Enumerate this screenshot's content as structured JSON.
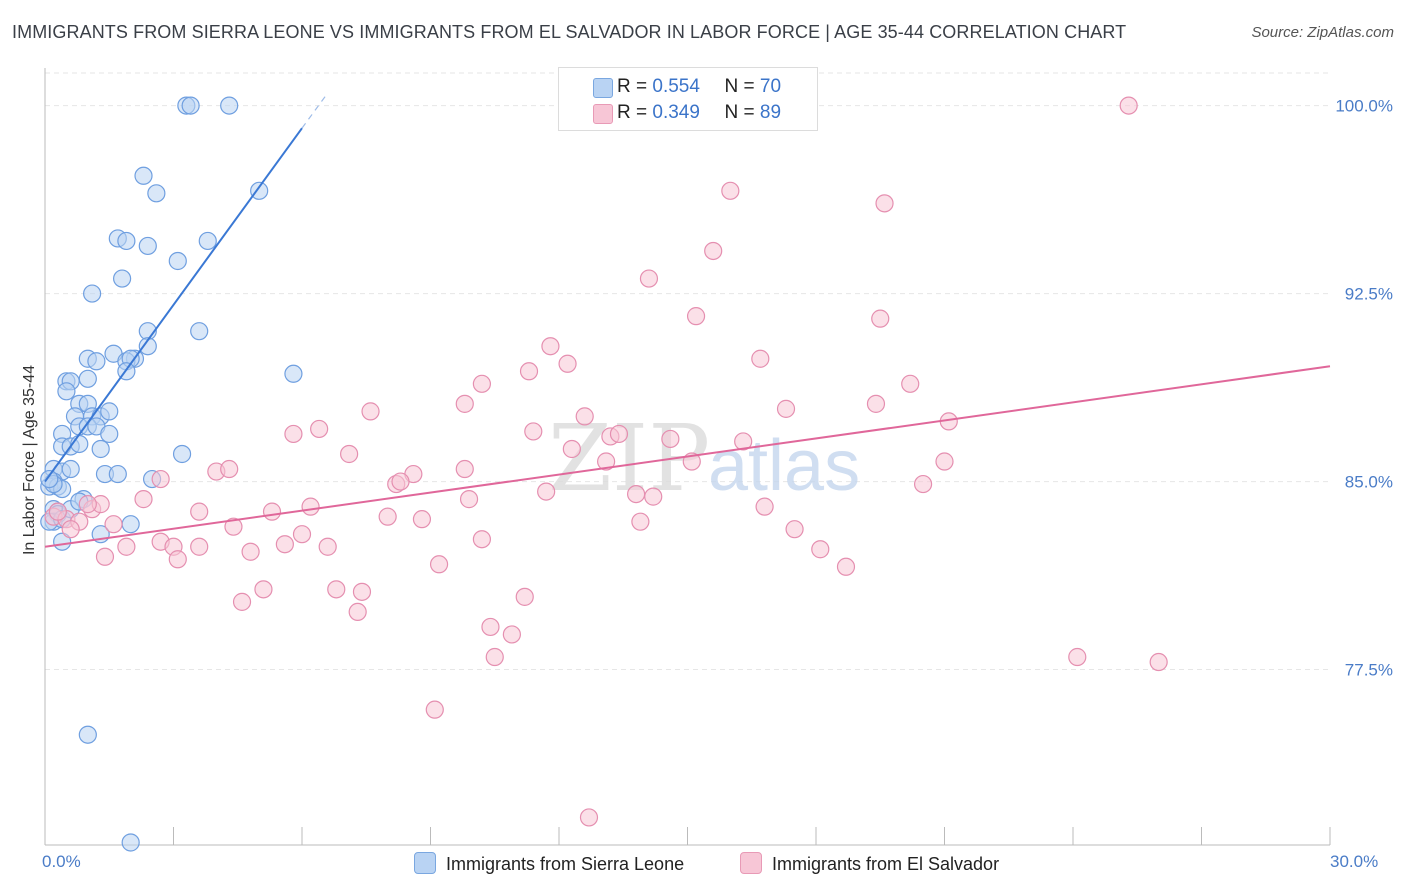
{
  "title": "IMMIGRANTS FROM SIERRA LEONE VS IMMIGRANTS FROM EL SALVADOR IN LABOR FORCE | AGE 35-44 CORRELATION CHART",
  "source": "Source: ZipAtlas.com",
  "watermark": "ZIPatlas",
  "colors": {
    "blue": "#3a78d4",
    "blue_fill": "#b9d3f3",
    "pink": "#e0679a",
    "pink_fill": "#f7c6d6",
    "tick": "#4a7cc7"
  },
  "legend": {
    "r_label": "R =",
    "n_label": "N =",
    "series1": {
      "r": "0.554",
      "n": "70"
    },
    "series2": {
      "r": "0.349",
      "n": "89"
    }
  },
  "chart_data": {
    "type": "scatter",
    "title": "IMMIGRANTS FROM SIERRA LEONE VS IMMIGRANTS FROM EL SALVADOR IN LABOR FORCE | AGE 35-44 CORRELATION CHART",
    "xlabel": "",
    "ylabel": "In Labor Force | Age 35-44",
    "xlim": [
      0,
      30
    ],
    "ylim": [
      70.5,
      101.5
    ],
    "x_tick_labels": [
      "0.0%",
      "30.0%"
    ],
    "y_ticks": [
      77.5,
      85.0,
      92.5,
      100.0
    ],
    "y_tick_labels": [
      "77.5%",
      "85.0%",
      "92.5%",
      "100.0%"
    ],
    "grid": true,
    "legend_position": "top-center",
    "series": [
      {
        "name": "Immigrants from Sierra Leone",
        "color": "#3a78d4",
        "trend": {
          "x": [
            0.0,
            6.0
          ],
          "y": [
            85.0,
            99.1
          ]
        },
        "points": [
          [
            3.3,
            100.0
          ],
          [
            3.4,
            100.0
          ],
          [
            4.3,
            100.0
          ],
          [
            2.3,
            97.2
          ],
          [
            2.6,
            96.5
          ],
          [
            5.0,
            96.6
          ],
          [
            1.7,
            94.7
          ],
          [
            1.9,
            94.6
          ],
          [
            2.4,
            94.4
          ],
          [
            3.8,
            94.6
          ],
          [
            3.1,
            93.8
          ],
          [
            1.8,
            93.1
          ],
          [
            1.1,
            92.5
          ],
          [
            2.4,
            91.0
          ],
          [
            3.6,
            91.0
          ],
          [
            2.4,
            90.4
          ],
          [
            1.6,
            90.1
          ],
          [
            1.0,
            89.9
          ],
          [
            1.2,
            89.8
          ],
          [
            2.1,
            89.9
          ],
          [
            1.9,
            89.8
          ],
          [
            2.0,
            89.9
          ],
          [
            0.5,
            89.0
          ],
          [
            0.6,
            89.0
          ],
          [
            1.0,
            89.1
          ],
          [
            1.9,
            89.4
          ],
          [
            5.8,
            89.3
          ],
          [
            0.5,
            88.6
          ],
          [
            0.8,
            88.1
          ],
          [
            1.0,
            88.1
          ],
          [
            0.7,
            87.6
          ],
          [
            1.1,
            87.6
          ],
          [
            1.3,
            87.6
          ],
          [
            1.5,
            87.8
          ],
          [
            0.8,
            87.2
          ],
          [
            1.0,
            87.2
          ],
          [
            1.2,
            87.2
          ],
          [
            0.4,
            86.9
          ],
          [
            1.5,
            86.9
          ],
          [
            0.4,
            86.4
          ],
          [
            0.6,
            86.4
          ],
          [
            0.8,
            86.5
          ],
          [
            1.3,
            86.3
          ],
          [
            3.2,
            86.1
          ],
          [
            0.2,
            85.5
          ],
          [
            0.4,
            85.4
          ],
          [
            0.6,
            85.5
          ],
          [
            1.4,
            85.3
          ],
          [
            1.7,
            85.3
          ],
          [
            2.5,
            85.1
          ],
          [
            0.2,
            85.0
          ],
          [
            0.1,
            84.8
          ],
          [
            0.3,
            84.8
          ],
          [
            0.4,
            84.7
          ],
          [
            0.9,
            84.3
          ],
          [
            0.2,
            83.9
          ],
          [
            0.3,
            83.8
          ],
          [
            0.3,
            83.7
          ],
          [
            0.2,
            83.4
          ],
          [
            0.1,
            83.4
          ],
          [
            0.4,
            83.5
          ],
          [
            2.0,
            83.3
          ],
          [
            1.3,
            82.9
          ],
          [
            0.4,
            82.6
          ],
          [
            1.0,
            74.9
          ],
          [
            2.0,
            70.6
          ],
          [
            0.2,
            84.9
          ],
          [
            0.1,
            85.1
          ],
          [
            0.6,
            83.9
          ],
          [
            0.8,
            84.2
          ]
        ]
      },
      {
        "name": "Immigrants from El Salvador",
        "color": "#e0679a",
        "trend": {
          "x": [
            0.0,
            30.0
          ],
          "y": [
            82.4,
            89.6
          ]
        },
        "points": [
          [
            25.3,
            100.0
          ],
          [
            16.0,
            96.6
          ],
          [
            19.6,
            96.1
          ],
          [
            15.6,
            94.2
          ],
          [
            14.1,
            93.1
          ],
          [
            15.2,
            91.6
          ],
          [
            19.5,
            91.5
          ],
          [
            11.8,
            90.4
          ],
          [
            11.3,
            89.4
          ],
          [
            12.2,
            89.7
          ],
          [
            16.7,
            89.9
          ],
          [
            10.2,
            88.9
          ],
          [
            20.2,
            88.9
          ],
          [
            9.8,
            88.1
          ],
          [
            7.6,
            87.8
          ],
          [
            17.3,
            87.9
          ],
          [
            19.4,
            88.1
          ],
          [
            12.6,
            87.6
          ],
          [
            21.1,
            87.4
          ],
          [
            11.4,
            87.0
          ],
          [
            5.8,
            86.9
          ],
          [
            6.4,
            87.1
          ],
          [
            13.2,
            86.8
          ],
          [
            13.4,
            86.9
          ],
          [
            14.6,
            86.7
          ],
          [
            16.3,
            86.6
          ],
          [
            7.1,
            86.1
          ],
          [
            12.3,
            86.3
          ],
          [
            13.1,
            85.8
          ],
          [
            15.1,
            85.8
          ],
          [
            21.0,
            85.8
          ],
          [
            4.0,
            85.4
          ],
          [
            4.3,
            85.5
          ],
          [
            8.6,
            85.3
          ],
          [
            9.8,
            85.5
          ],
          [
            2.7,
            85.1
          ],
          [
            8.2,
            84.9
          ],
          [
            8.3,
            85.0
          ],
          [
            11.7,
            84.6
          ],
          [
            13.8,
            84.5
          ],
          [
            20.5,
            84.9
          ],
          [
            2.3,
            84.3
          ],
          [
            9.9,
            84.3
          ],
          [
            14.2,
            84.4
          ],
          [
            16.8,
            84.0
          ],
          [
            1.1,
            83.9
          ],
          [
            1.3,
            84.1
          ],
          [
            3.6,
            83.8
          ],
          [
            5.3,
            83.8
          ],
          [
            6.2,
            84.0
          ],
          [
            8.0,
            83.6
          ],
          [
            8.8,
            83.5
          ],
          [
            1.6,
            83.3
          ],
          [
            4.4,
            83.2
          ],
          [
            6.0,
            82.9
          ],
          [
            10.2,
            82.7
          ],
          [
            13.9,
            83.4
          ],
          [
            17.5,
            83.1
          ],
          [
            0.2,
            83.6
          ],
          [
            0.5,
            83.5
          ],
          [
            1.9,
            82.4
          ],
          [
            2.7,
            82.6
          ],
          [
            3.0,
            82.4
          ],
          [
            3.6,
            82.4
          ],
          [
            4.8,
            82.2
          ],
          [
            5.6,
            82.5
          ],
          [
            6.6,
            82.4
          ],
          [
            18.1,
            82.3
          ],
          [
            1.4,
            82.0
          ],
          [
            3.1,
            81.9
          ],
          [
            9.2,
            81.7
          ],
          [
            18.7,
            81.6
          ],
          [
            5.1,
            80.7
          ],
          [
            6.8,
            80.7
          ],
          [
            7.4,
            80.6
          ],
          [
            11.2,
            80.4
          ],
          [
            4.6,
            80.2
          ],
          [
            7.3,
            79.8
          ],
          [
            10.4,
            79.2
          ],
          [
            10.9,
            78.9
          ],
          [
            10.5,
            78.0
          ],
          [
            24.1,
            78.0
          ],
          [
            26.0,
            77.8
          ],
          [
            9.1,
            75.9
          ],
          [
            12.7,
            71.6
          ],
          [
            0.3,
            83.8
          ],
          [
            0.8,
            83.4
          ],
          [
            1.0,
            84.1
          ],
          [
            0.6,
            83.1
          ]
        ]
      }
    ]
  },
  "bottom_legend": {
    "series1_label": "Immigrants from Sierra Leone",
    "series2_label": "Immigrants from El Salvador"
  }
}
